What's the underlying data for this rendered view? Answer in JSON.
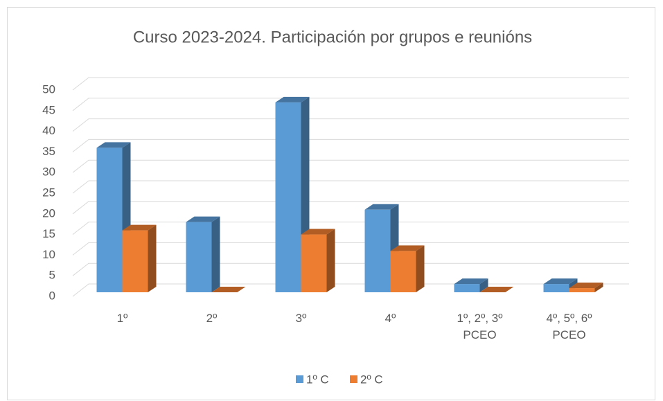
{
  "chart_data": {
    "type": "bar3d",
    "title": "Curso 2023-2024. Participación por grupos e reunións",
    "categories": [
      "1º",
      "2º",
      "3º",
      "4º",
      "1º, 2º, 3º\nPCEO",
      "4º, 5º, 6º\nPCEO"
    ],
    "series": [
      {
        "name": "1º C",
        "color": "#5b9bd5",
        "values": [
          35,
          17,
          46,
          20,
          2,
          2
        ]
      },
      {
        "name": "2º C",
        "color": "#ed7d31",
        "values": [
          15,
          0,
          14,
          10,
          0,
          1
        ]
      }
    ],
    "ylim": [
      0,
      50
    ],
    "yticks": [
      0,
      5,
      10,
      15,
      20,
      25,
      30,
      35,
      40,
      45,
      50
    ],
    "grid": true,
    "legend": "bottom"
  }
}
